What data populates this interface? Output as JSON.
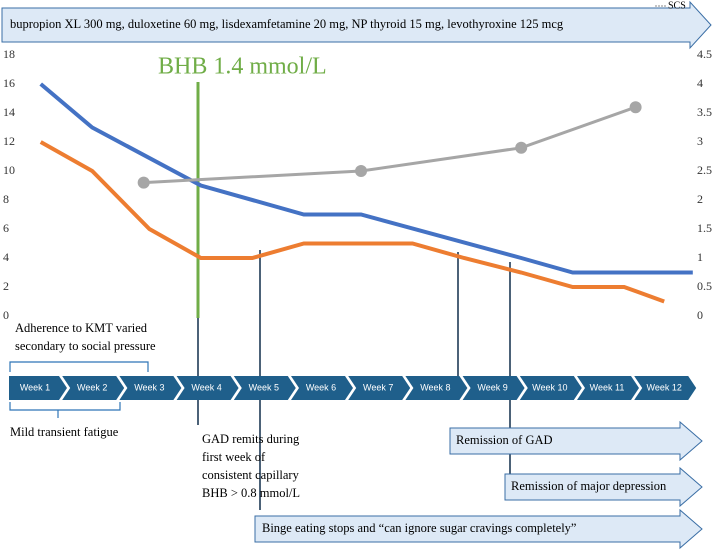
{
  "chart_data": {
    "type": "line",
    "ylim": [
      0,
      18
    ],
    "yticks": [
      0,
      2,
      4,
      6,
      8,
      10,
      12,
      14,
      16,
      18
    ],
    "y2lim": [
      0,
      4.5
    ],
    "y2ticks": [
      0,
      0.5,
      1,
      1.5,
      2,
      2.5,
      3,
      3.5,
      4,
      4.5
    ],
    "series": [
      {
        "color": "#4472c4",
        "x": [
          1.1,
          2.0,
          3.9,
          5.7,
          6.7,
          9.5,
          10.4,
          12.5
        ],
        "values": [
          16,
          13,
          9,
          7,
          7,
          4,
          3,
          3
        ]
      },
      {
        "color": "#ed7d31",
        "x": [
          1.1,
          2.0,
          3.0,
          3.9,
          4.8,
          5.7,
          7.6,
          8.5,
          9.5,
          10.4,
          11.3,
          12.0
        ],
        "values": [
          12,
          10,
          6,
          4,
          4,
          5,
          5,
          4,
          3,
          2,
          2,
          1
        ]
      },
      {
        "name": "SCS",
        "color": "#a6a6a6",
        "axis": "y2",
        "x": [
          2.9,
          6.7,
          9.5,
          11.5
        ],
        "values": [
          2.3,
          2.5,
          2.9,
          3.6
        ]
      }
    ]
  },
  "banner": "bupropion XL 300 mg, duloxetine 60 mg, lisdexamfetamine 20 mg, NP thyroid 15 mg, levothyroxine 125 mcg",
  "bhb_label": "BHB 1.4 mmol/L",
  "weeks": [
    "Week 1",
    "Week 2",
    "Week 3",
    "Week 4",
    "Week 5",
    "Week 6",
    "Week 7",
    "Week 8",
    "Week 9",
    "Week 10",
    "Week 11",
    "Week 12"
  ],
  "adherence_note": [
    "Adherence to KMT varied",
    "secondary to social pressure"
  ],
  "fatigue_note": "Mild transient fatigue",
  "gad_note": [
    "GAD remits during",
    "first week of",
    "consistent capillary",
    "BHB > 0.8 mmol/L"
  ],
  "outcomes": [
    "Remission of GAD",
    "Remission of major depression",
    "Binge eating stops and “can ignore sugar cravings completely”"
  ]
}
